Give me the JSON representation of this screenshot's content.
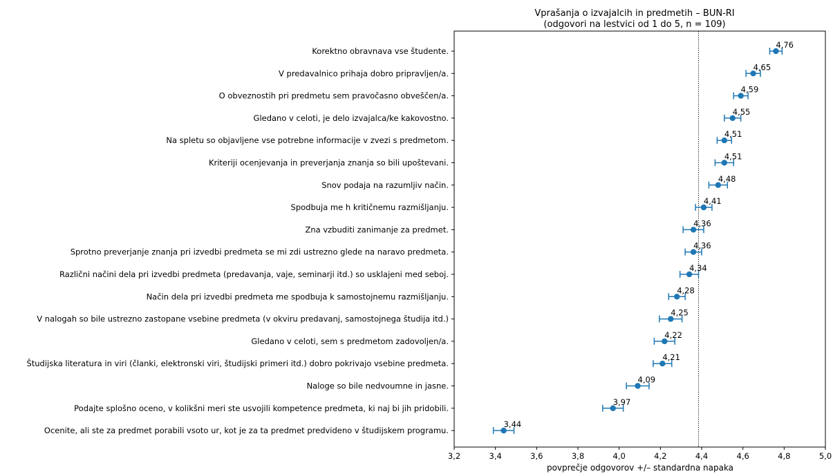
{
  "chart_data": {
    "type": "scatter",
    "title": "Vprašanja o izvajalcih in predmetih – BUN-RI",
    "subtitle": "(odgovori na lestvici od 1 do 5, n = 109)",
    "xlabel": "povprečje odgovorov +/– standardna napaka",
    "xlim": [
      3.2,
      5.0
    ],
    "xticks": [
      "3,2",
      "3,4",
      "3,6",
      "3,8",
      "4,0",
      "4,2",
      "4,4",
      "4,6",
      "4,8",
      "5,0"
    ],
    "reference_line": 4.385,
    "grid": false,
    "color": "#1f77b4",
    "items": [
      {
        "label": "Korektno obravnava vse študente.",
        "value": 4.76,
        "value_label": "4,76",
        "err": 0.03
      },
      {
        "label": "V predavalnico prihaja dobro pripravljen/a.",
        "value": 4.65,
        "value_label": "4,65",
        "err": 0.035
      },
      {
        "label": "O obveznostih pri predmetu sem pravočasno obveščen/a.",
        "value": 4.59,
        "value_label": "4,59",
        "err": 0.035
      },
      {
        "label": "Gledano v celoti, je delo izvajalca/ke kakovostno.",
        "value": 4.55,
        "value_label": "4,55",
        "err": 0.04
      },
      {
        "label": "Na spletu so objavljene vse potrebne informacije v zvezi s predmetom.",
        "value": 4.51,
        "value_label": "4,51",
        "err": 0.035
      },
      {
        "label": "Kriteriji ocenjevanja in preverjanja znanja so bili upoštevani.",
        "value": 4.51,
        "value_label": "4,51",
        "err": 0.045
      },
      {
        "label": "Snov podaja na razumljiv način.",
        "value": 4.48,
        "value_label": "4,48",
        "err": 0.045
      },
      {
        "label": "Spodbuja me h kritičnemu razmišljanju.",
        "value": 4.41,
        "value_label": "4,41",
        "err": 0.04
      },
      {
        "label": "Zna vzbuditi zanimanje za predmet.",
        "value": 4.36,
        "value_label": "4,36",
        "err": 0.05
      },
      {
        "label": "Sprotno preverjanje znanja pri izvedbi predmeta se mi zdi ustrezno glede na naravo predmeta.",
        "value": 4.36,
        "value_label": "4,36",
        "err": 0.04
      },
      {
        "label": "Različni načini dela pri izvedbi predmeta (predavanja, vaje, seminarji itd.) so usklajeni med seboj.",
        "value": 4.34,
        "value_label": "4,34",
        "err": 0.045
      },
      {
        "label": "Način dela pri izvedbi predmeta me spodbuja k samostojnemu razmišljanju.",
        "value": 4.28,
        "value_label": "4,28",
        "err": 0.04
      },
      {
        "label": "V nalogah so bile ustrezno zastopane vsebine predmeta (v okviru predavanj, samostojnega študija itd.)",
        "value": 4.25,
        "value_label": "4,25",
        "err": 0.055
      },
      {
        "label": "Gledano v celoti, sem s predmetom zadovoljen/a.",
        "value": 4.22,
        "value_label": "4,22",
        "err": 0.05
      },
      {
        "label": "Študijska literatura in viri (članki, elektronski viri, študijski primeri itd.) dobro pokrivajo vsebine predmeta.",
        "value": 4.21,
        "value_label": "4,21",
        "err": 0.045
      },
      {
        "label": "Naloge so bile nedvoumne in jasne.",
        "value": 4.09,
        "value_label": "4,09",
        "err": 0.055
      },
      {
        "label": "Podajte splošno oceno, v kolikšni meri ste usvojili kompetence predmeta, ki naj bi jih pridobili.",
        "value": 3.97,
        "value_label": "3,97",
        "err": 0.05
      },
      {
        "label": "Ocenite, ali ste za predmet porabili vsoto ur, kot je za ta predmet predvideno v študijskem programu.",
        "value": 3.44,
        "value_label": "3,44",
        "err": 0.05
      }
    ]
  }
}
